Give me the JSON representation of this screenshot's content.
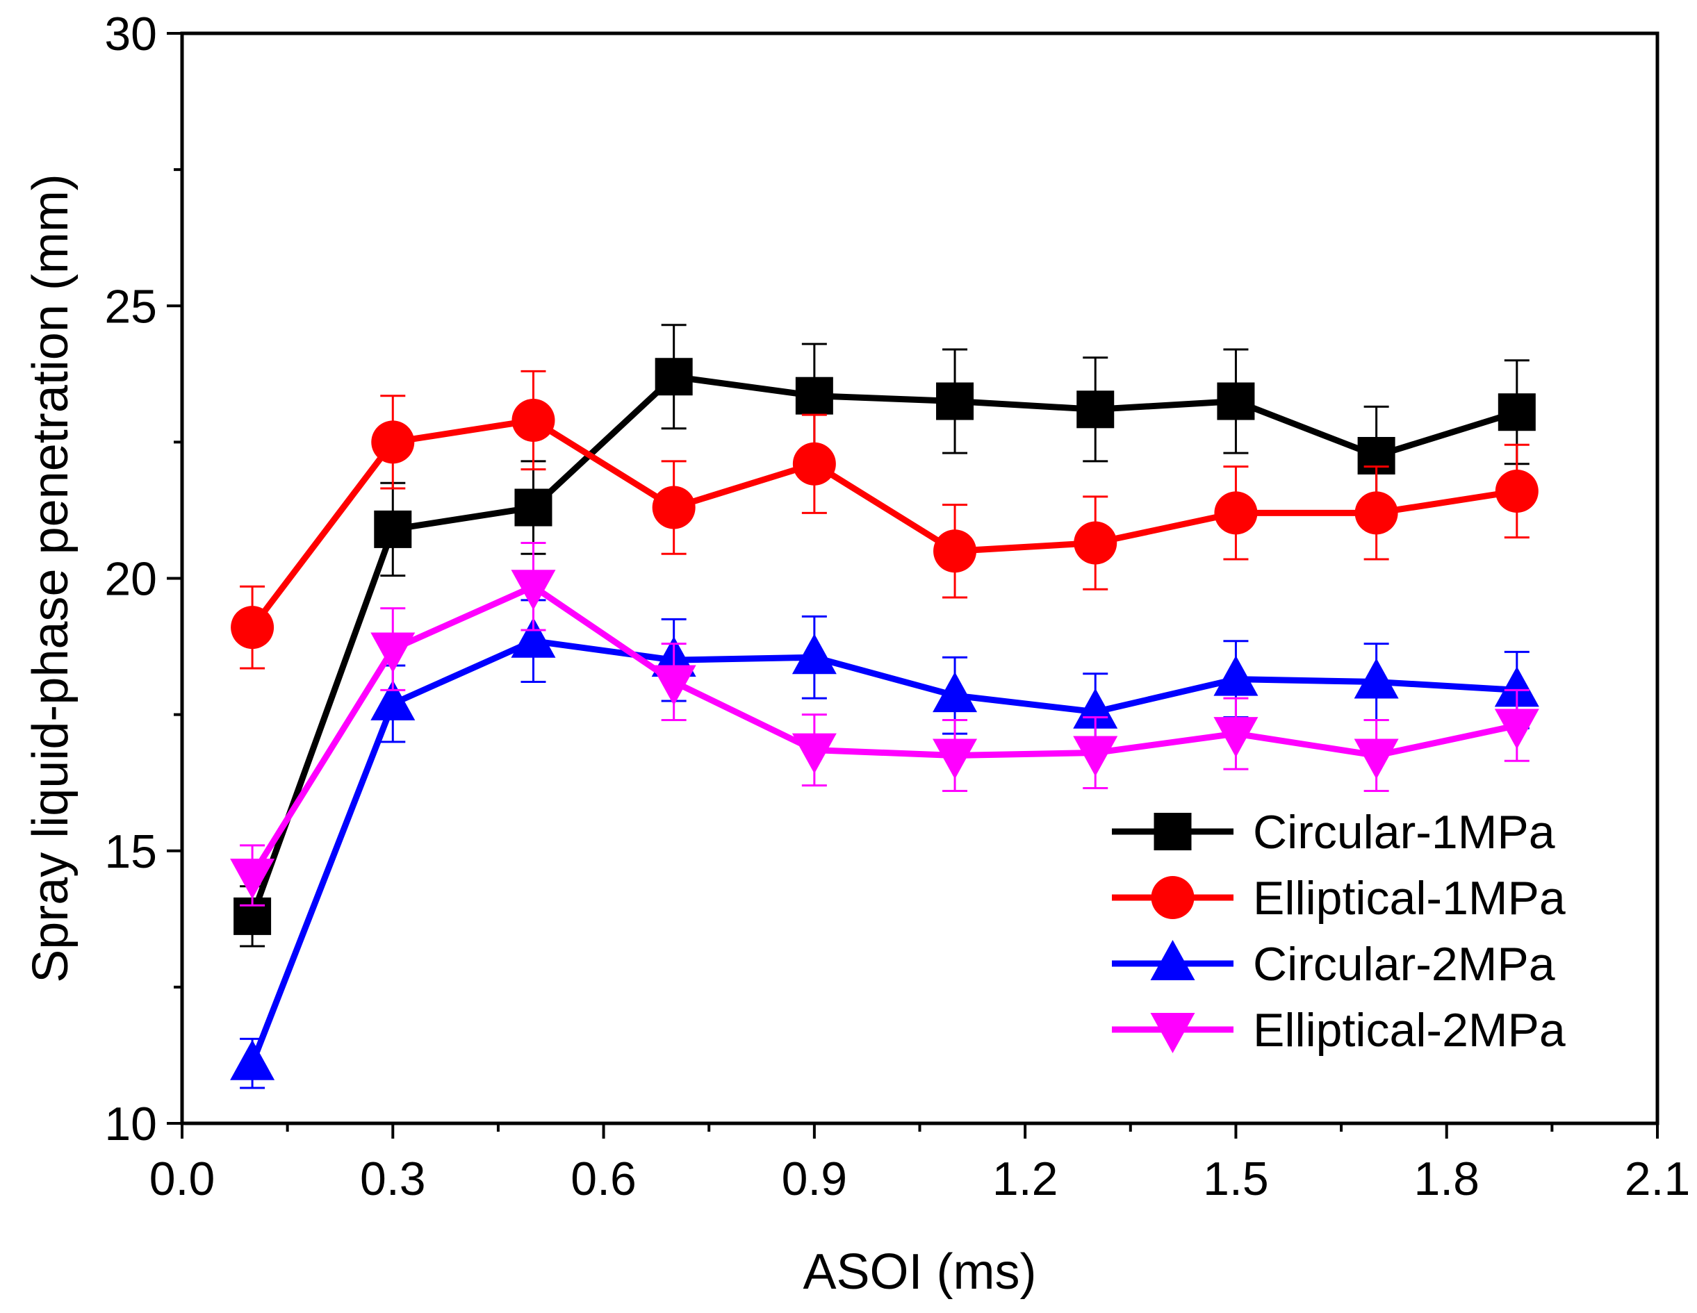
{
  "chart_data": {
    "type": "line",
    "title": "",
    "xlabel": "ASOI (ms)",
    "ylabel": "Spray liquid-phase penetration (mm)",
    "xlim": [
      0.0,
      2.1
    ],
    "ylim": [
      10,
      30
    ],
    "xticks": [
      0.0,
      0.3,
      0.6,
      0.9,
      1.2,
      1.5,
      1.8,
      2.1
    ],
    "xtick_labels": [
      "0.0",
      "0.3",
      "0.6",
      "0.9",
      "1.2",
      "1.5",
      "1.8",
      "2.1"
    ],
    "x_minor_ticks": [
      0.15,
      0.45,
      0.75,
      1.05,
      1.35,
      1.65,
      1.95
    ],
    "yticks": [
      10,
      15,
      20,
      25,
      30
    ],
    "ytick_labels": [
      "10",
      "15",
      "20",
      "25",
      "30"
    ],
    "y_minor_ticks": [
      12.5,
      17.5,
      22.5,
      27.5
    ],
    "grid": false,
    "legend_position": "bottom-right",
    "x": [
      0.1,
      0.3,
      0.5,
      0.7,
      0.9,
      1.1,
      1.3,
      1.5,
      1.7,
      1.9
    ],
    "series": [
      {
        "name": "Circular-1MPa",
        "color": "#000000",
        "marker": "square",
        "values": [
          13.8,
          20.9,
          21.3,
          23.7,
          23.35,
          23.25,
          23.1,
          23.25,
          22.25,
          23.05
        ],
        "errors": [
          0.55,
          0.85,
          0.85,
          0.95,
          0.95,
          0.95,
          0.95,
          0.95,
          0.9,
          0.95
        ]
      },
      {
        "name": "Elliptical-1MPa",
        "color": "#ff0000",
        "marker": "circle",
        "values": [
          19.1,
          22.5,
          22.9,
          21.3,
          22.1,
          20.5,
          20.65,
          21.2,
          21.2,
          21.6
        ],
        "errors": [
          0.75,
          0.85,
          0.9,
          0.85,
          0.9,
          0.85,
          0.85,
          0.85,
          0.85,
          0.85
        ]
      },
      {
        "name": "Circular-2MPa",
        "color": "#0000ff",
        "marker": "triangle-up",
        "values": [
          11.1,
          17.7,
          18.85,
          18.5,
          18.55,
          17.85,
          17.55,
          18.15,
          18.1,
          17.95
        ],
        "errors": [
          0.45,
          0.7,
          0.75,
          0.75,
          0.75,
          0.7,
          0.7,
          0.7,
          0.7,
          0.7
        ]
      },
      {
        "name": "Elliptical-2MPa",
        "color": "#ff00ff",
        "marker": "triangle-down",
        "values": [
          14.55,
          18.7,
          19.85,
          18.1,
          16.85,
          16.75,
          16.8,
          17.15,
          16.75,
          17.3
        ],
        "errors": [
          0.55,
          0.75,
          0.8,
          0.7,
          0.65,
          0.65,
          0.65,
          0.65,
          0.65,
          0.65
        ]
      }
    ]
  }
}
